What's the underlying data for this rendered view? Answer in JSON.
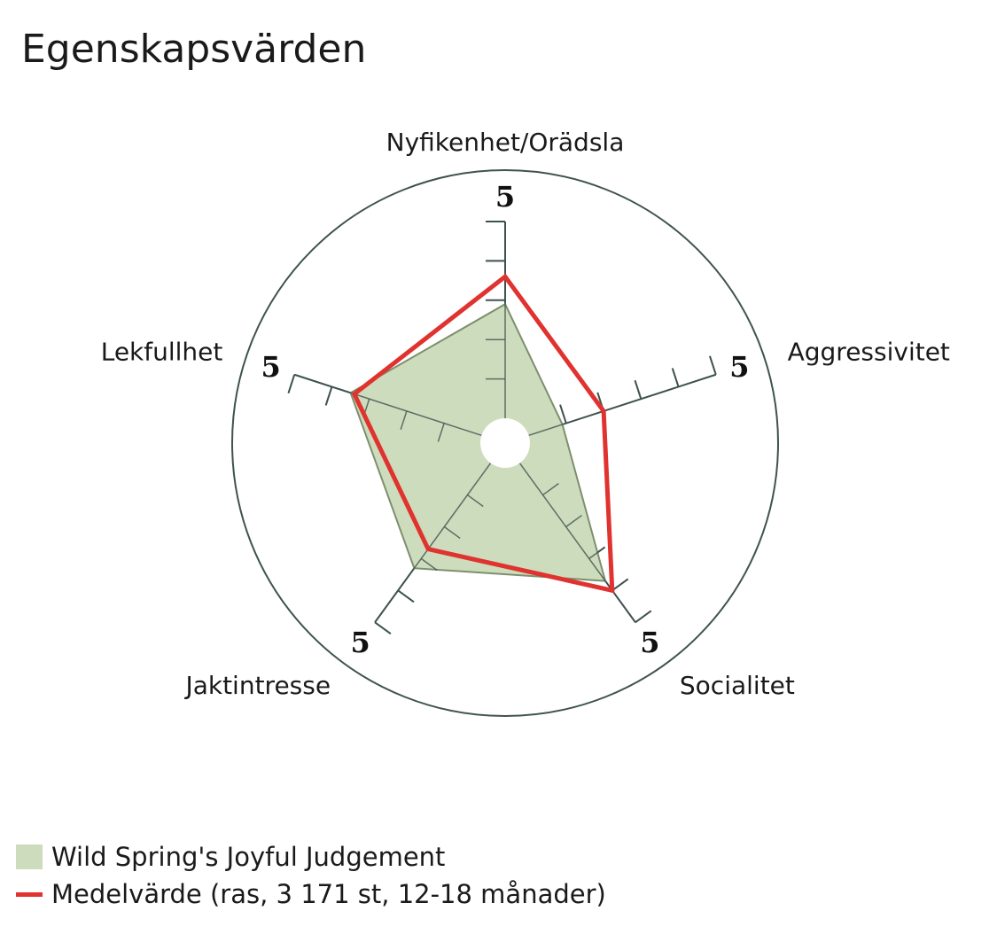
{
  "title": "Egenskapsvärden",
  "colors": {
    "series_fill": "#cddcbc",
    "series_stroke": "#7d8f6e",
    "average": "#e0322e",
    "axis": "#3f5350"
  },
  "chart_data": {
    "type": "radar",
    "title": "Egenskapsvärden",
    "axes": [
      "Nyfikenhet/Orädsla",
      "Aggressivitet",
      "Socialitet",
      "Jaktintresse",
      "Lekfullhet"
    ],
    "axis_max_labels": [
      "5",
      "5",
      "5",
      "5",
      "5"
    ],
    "range": [
      0,
      5
    ],
    "ticks": 5,
    "series": [
      {
        "name": "Wild Spring's Joyful Judgement",
        "style": "area",
        "values": [
          2.9,
          0.9,
          3.7,
          3.3,
          3.5
        ]
      },
      {
        "name": "Medelvärde (ras, 3 171 st, 12-18 månader)",
        "style": "line",
        "values": [
          3.6,
          2.0,
          4.0,
          2.7,
          3.4
        ]
      }
    ]
  }
}
